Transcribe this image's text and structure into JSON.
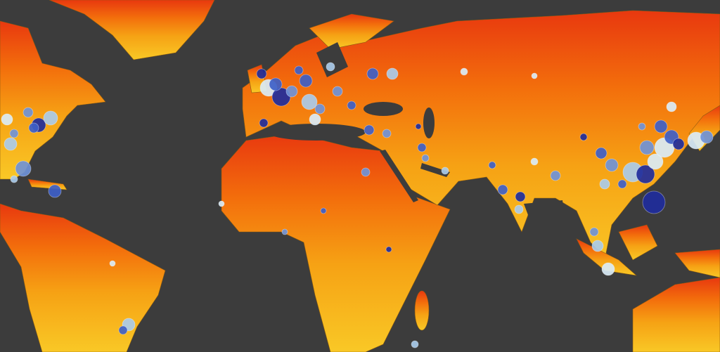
{
  "map": {
    "ocean_color": "#3c3c3c",
    "land_gradient": [
      "#e83a10",
      "#f47a0c",
      "#f7b418",
      "#f9cc2a"
    ],
    "border_color": "#8a5a10",
    "marker_colors": [
      "#1f2d9c",
      "#3e5fc8",
      "#6f93d8",
      "#a9cbea",
      "#d9ecf7"
    ]
  }
}
